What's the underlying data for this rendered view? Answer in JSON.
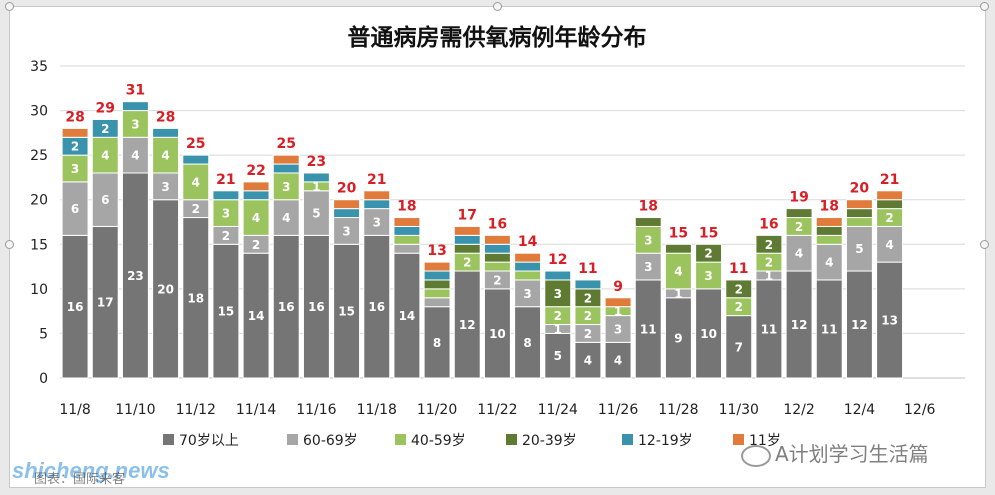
{
  "chart_data": {
    "type": "bar",
    "stacked": true,
    "title": "普通病房需供氧病例年龄分布",
    "categories": [
      "11/8",
      "11/9",
      "11/10",
      "11/11",
      "11/12",
      "11/13",
      "11/14",
      "11/15",
      "11/16",
      "11/17",
      "11/18",
      "11/19",
      "11/20",
      "11/21",
      "11/22",
      "11/23",
      "11/24",
      "11/25",
      "11/26",
      "11/27",
      "11/28",
      "11/29",
      "11/30",
      "12/1",
      "12/2",
      "12/3",
      "12/4",
      "12/5"
    ],
    "x_tick_labels": [
      "11/8",
      "11/10",
      "11/12",
      "11/14",
      "11/16",
      "11/18",
      "11/20",
      "11/22",
      "11/24",
      "11/26",
      "11/28",
      "11/30",
      "12/2",
      "12/4",
      "12/6"
    ],
    "y_ticks": [
      "0",
      "5",
      "10",
      "15",
      "20",
      "25",
      "30",
      "35"
    ],
    "ylim": [
      0,
      35
    ],
    "grid": true,
    "legend_position": "bottom",
    "series": [
      {
        "name": "70岁以上",
        "color": "#757575",
        "values": [
          16,
          17,
          23,
          20,
          18,
          15,
          14,
          16,
          16,
          15,
          16,
          14,
          8,
          12,
          10,
          8,
          5,
          4,
          4,
          11,
          9,
          10,
          7,
          11,
          12,
          11,
          12,
          13
        ]
      },
      {
        "name": "60-69岁",
        "color": "#a6a6a6",
        "values": [
          6,
          6,
          4,
          3,
          2,
          2,
          2,
          4,
          5,
          3,
          3,
          1,
          1,
          0,
          2,
          3,
          1,
          2,
          3,
          3,
          1,
          0,
          0,
          1,
          4,
          4,
          5,
          4
        ]
      },
      {
        "name": "40-59岁",
        "color": "#9bc45f",
        "values": [
          3,
          4,
          3,
          4,
          4,
          3,
          4,
          3,
          1,
          0,
          0,
          1,
          1,
          2,
          1,
          1,
          2,
          2,
          1,
          3,
          4,
          3,
          2,
          2,
          2,
          1,
          1,
          2
        ]
      },
      {
        "name": "20-39岁",
        "color": "#5e7a33",
        "values": [
          0,
          0,
          0,
          0,
          0,
          0,
          0,
          0,
          0,
          0,
          0,
          0,
          1,
          1,
          1,
          0,
          3,
          2,
          0,
          1,
          1,
          2,
          2,
          2,
          1,
          1,
          1,
          1
        ]
      },
      {
        "name": "12-19岁",
        "color": "#3a93ac",
        "values": [
          2,
          2,
          1,
          1,
          1,
          1,
          1,
          1,
          1,
          1,
          1,
          1,
          1,
          1,
          1,
          1,
          1,
          1,
          0,
          0,
          0,
          0,
          0,
          0,
          0,
          0,
          0,
          0
        ]
      },
      {
        "name": "11岁",
        "color": "#e07b3c",
        "values": [
          1,
          0,
          0,
          0,
          0,
          0,
          1,
          1,
          0,
          1,
          1,
          1,
          1,
          1,
          1,
          1,
          0,
          0,
          1,
          0,
          0,
          0,
          0,
          0,
          0,
          1,
          1,
          1
        ]
      }
    ],
    "segment_labels": {
      "70岁以上": [
        16,
        17,
        23,
        20,
        18,
        15,
        14,
        16,
        16,
        15,
        16,
        14,
        8,
        12,
        10,
        8,
        5,
        4,
        4,
        11,
        9,
        10,
        7,
        11,
        12,
        11,
        12,
        13
      ],
      "60-69岁": [
        6,
        6,
        4,
        3,
        2,
        2,
        2,
        4,
        5,
        3,
        3,
        null,
        null,
        null,
        2,
        3,
        1,
        2,
        3,
        3,
        1,
        null,
        null,
        1,
        4,
        4,
        5,
        4
      ],
      "40-59岁": [
        3,
        4,
        3,
        4,
        4,
        3,
        4,
        3,
        1,
        null,
        null,
        null,
        null,
        2,
        null,
        null,
        2,
        2,
        1,
        3,
        4,
        3,
        2,
        2,
        2,
        null,
        null,
        2
      ],
      "20-39岁": [
        null,
        null,
        null,
        null,
        null,
        null,
        null,
        null,
        null,
        null,
        null,
        null,
        null,
        null,
        null,
        null,
        3,
        2,
        null,
        null,
        null,
        2,
        2,
        2,
        null,
        null,
        null,
        null
      ],
      "12-19岁": [
        2,
        2,
        null,
        null,
        null,
        null,
        null,
        null,
        null,
        null,
        null,
        null,
        null,
        null,
        null,
        null,
        null,
        null,
        null,
        null,
        null,
        null,
        null,
        null,
        null,
        null,
        null,
        null
      ],
      "11岁": [
        null,
        null,
        null,
        null,
        null,
        null,
        null,
        null,
        null,
        null,
        null,
        null,
        null,
        null,
        null,
        null,
        null,
        null,
        null,
        null,
        null,
        null,
        null,
        null,
        null,
        null,
        null,
        null
      ]
    },
    "totals": [
      28,
      29,
      31,
      28,
      25,
      21,
      22,
      25,
      23,
      20,
      21,
      18,
      13,
      17,
      16,
      14,
      12,
      11,
      9,
      18,
      15,
      15,
      11,
      16,
      19,
      18,
      20,
      21
    ]
  },
  "watermark": "shicheng.news",
  "wechat_account": "A计划学习生活篇",
  "source_note": "图表：国际来客",
  "colors": {
    "total_label": "#d81f26",
    "accent": "#2d8ed9"
  }
}
